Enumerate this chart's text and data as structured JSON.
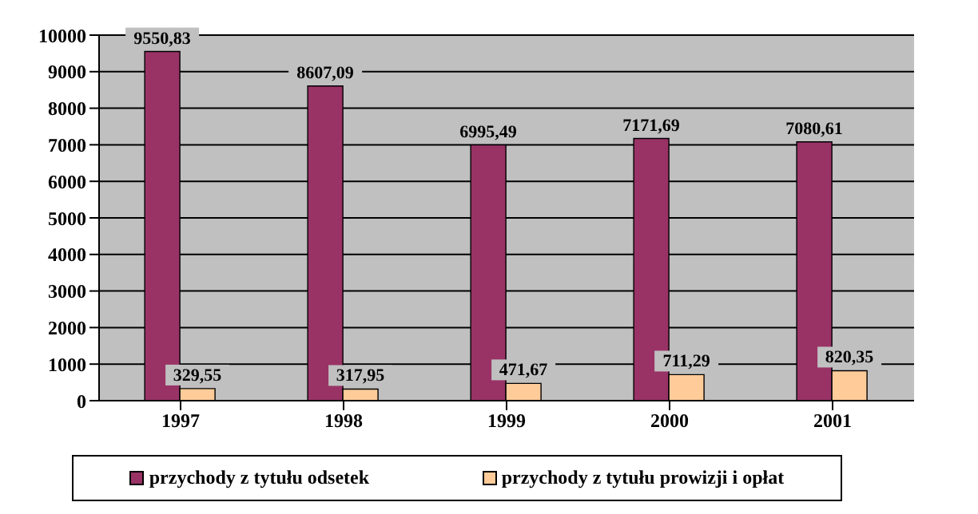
{
  "chart_data": {
    "type": "bar",
    "categories": [
      "1997",
      "1998",
      "1999",
      "2000",
      "2001"
    ],
    "series": [
      {
        "name": "przychody z tytułu odsetek",
        "color": "#993366",
        "values": [
          9550.83,
          8607.09,
          6995.49,
          7171.69,
          7080.61
        ],
        "value_labels": [
          "9550,83",
          "8607,09",
          "6995,49",
          "7171,69",
          "7080,61"
        ]
      },
      {
        "name": "przychody z tytułu prowizji i opłat",
        "color": "#ffcc99",
        "values": [
          329.55,
          317.95,
          471.67,
          711.29,
          820.35
        ],
        "value_labels": [
          "329,55",
          "317,95",
          "471,67",
          "711,29",
          "820,35"
        ]
      }
    ],
    "ylim": [
      0,
      10000
    ],
    "yticks": [
      0,
      1000,
      2000,
      3000,
      4000,
      5000,
      6000,
      7000,
      8000,
      9000,
      10000
    ],
    "grid": "y",
    "legend": "bottom"
  }
}
